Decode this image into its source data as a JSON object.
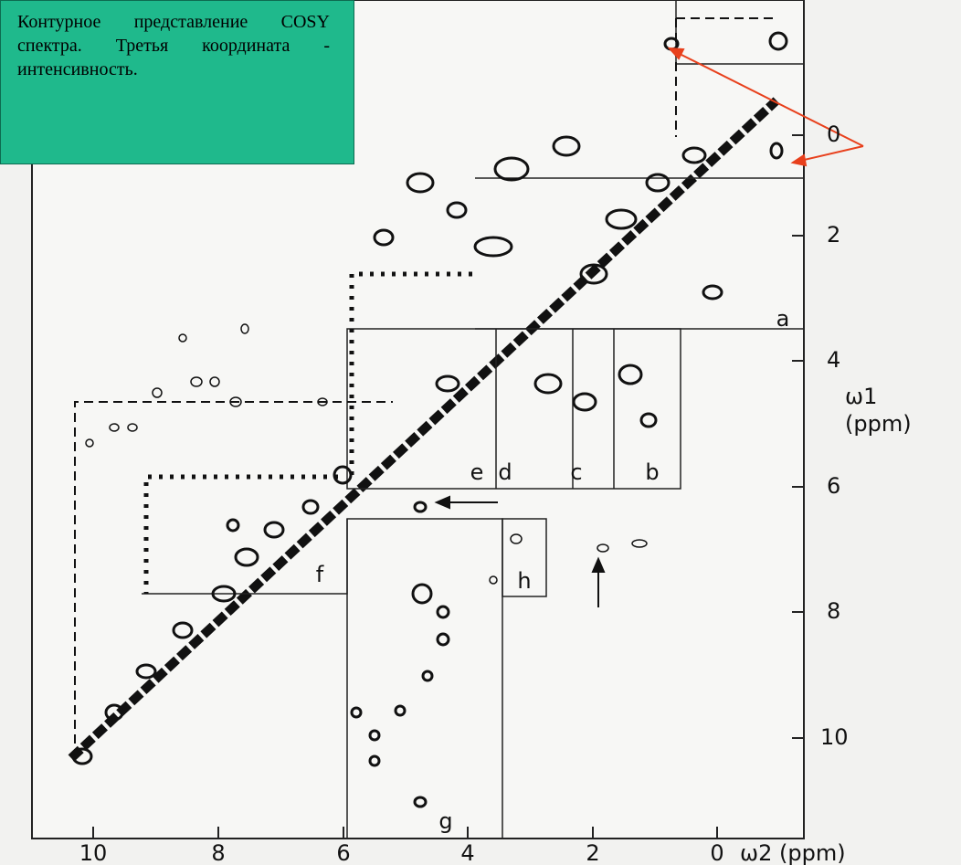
{
  "callout": {
    "text": "Контурное представление COSY спектра. Третья координата - интенсивность."
  },
  "axes": {
    "x_ticks": [
      "10",
      "8",
      "6",
      "4",
      "2",
      "0"
    ],
    "x_label": "ω2 (ppm)",
    "y_ticks": [
      "0",
      "2",
      "4",
      "6",
      "8",
      "10"
    ],
    "y_label_line1": "ω1",
    "y_label_line2": "(ppm)"
  },
  "regions": [
    "a",
    "b",
    "c",
    "d",
    "e",
    "f",
    "g",
    "h"
  ]
}
